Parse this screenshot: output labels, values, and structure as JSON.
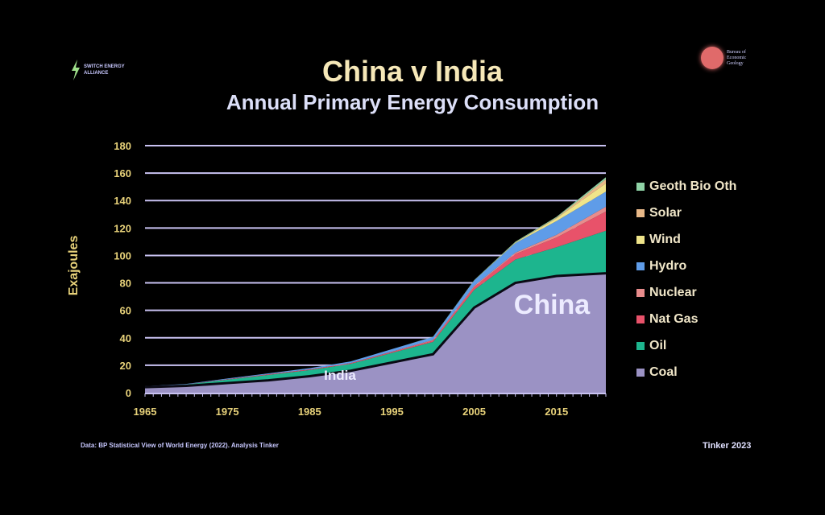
{
  "logos": {
    "left": "SWITCH ENERGY ALLIANCE",
    "right": "Bureau of Economic Geology"
  },
  "footer": {
    "source": "Data: BP Statistical View of World Energy (2022). Analysis Tinker",
    "credit": "Tinker 2023"
  },
  "chart_data": {
    "type": "area",
    "title": "China v India",
    "subtitle": "Annual Primary Energy Consumption",
    "xlabel": "",
    "ylabel": "Exajoules",
    "ylim": [
      0,
      180
    ],
    "xlim": [
      1965,
      2021
    ],
    "yticks": [
      0,
      20,
      40,
      60,
      80,
      100,
      120,
      140,
      160,
      180
    ],
    "xticks": [
      1965,
      1975,
      1985,
      1995,
      2005,
      2015
    ],
    "grid": true,
    "legend_position": "right",
    "annotations": [
      "China",
      "India"
    ],
    "x": [
      1965,
      1970,
      1975,
      1980,
      1985,
      1990,
      1995,
      2000,
      2005,
      2010,
      2015,
      2021
    ],
    "series": [
      {
        "name": "Coal",
        "color": "#9b92c4",
        "values": [
          4,
          5,
          7,
          9,
          12,
          16,
          22,
          28,
          62,
          80,
          85,
          87
        ]
      },
      {
        "name": "Oil",
        "color": "#1db58e",
        "values": [
          0.5,
          1,
          2.5,
          4,
          4.5,
          5,
          7,
          9,
          13,
          17,
          21,
          31
        ]
      },
      {
        "name": "Nat Gas",
        "color": "#e8526a",
        "values": [
          0.1,
          0.1,
          0.3,
          0.5,
          0.5,
          0.6,
          0.7,
          1,
          2,
          4,
          7,
          14
        ]
      },
      {
        "name": "Nuclear",
        "color": "#e88c8c",
        "values": [
          0,
          0,
          0,
          0,
          0,
          0,
          0.2,
          0.5,
          0.8,
          1,
          2,
          3.5
        ]
      },
      {
        "name": "Hydro",
        "color": "#5f9ce8",
        "values": [
          0.2,
          0.3,
          0.5,
          0.6,
          0.9,
          1.2,
          1.8,
          2.2,
          4,
          7,
          10,
          11
        ]
      },
      {
        "name": "Wind",
        "color": "#efe48a",
        "values": [
          0,
          0,
          0,
          0,
          0,
          0,
          0,
          0,
          0.1,
          0.5,
          2,
          6
        ]
      },
      {
        "name": "Solar",
        "color": "#e8b888",
        "values": [
          0,
          0,
          0,
          0,
          0,
          0,
          0,
          0,
          0,
          0.1,
          0.5,
          3
        ]
      },
      {
        "name": "Geoth Bio Oth",
        "color": "#8fd3a6",
        "values": [
          0,
          0,
          0,
          0,
          0,
          0,
          0,
          0.1,
          0.2,
          0.4,
          0.6,
          1.5
        ]
      }
    ]
  }
}
